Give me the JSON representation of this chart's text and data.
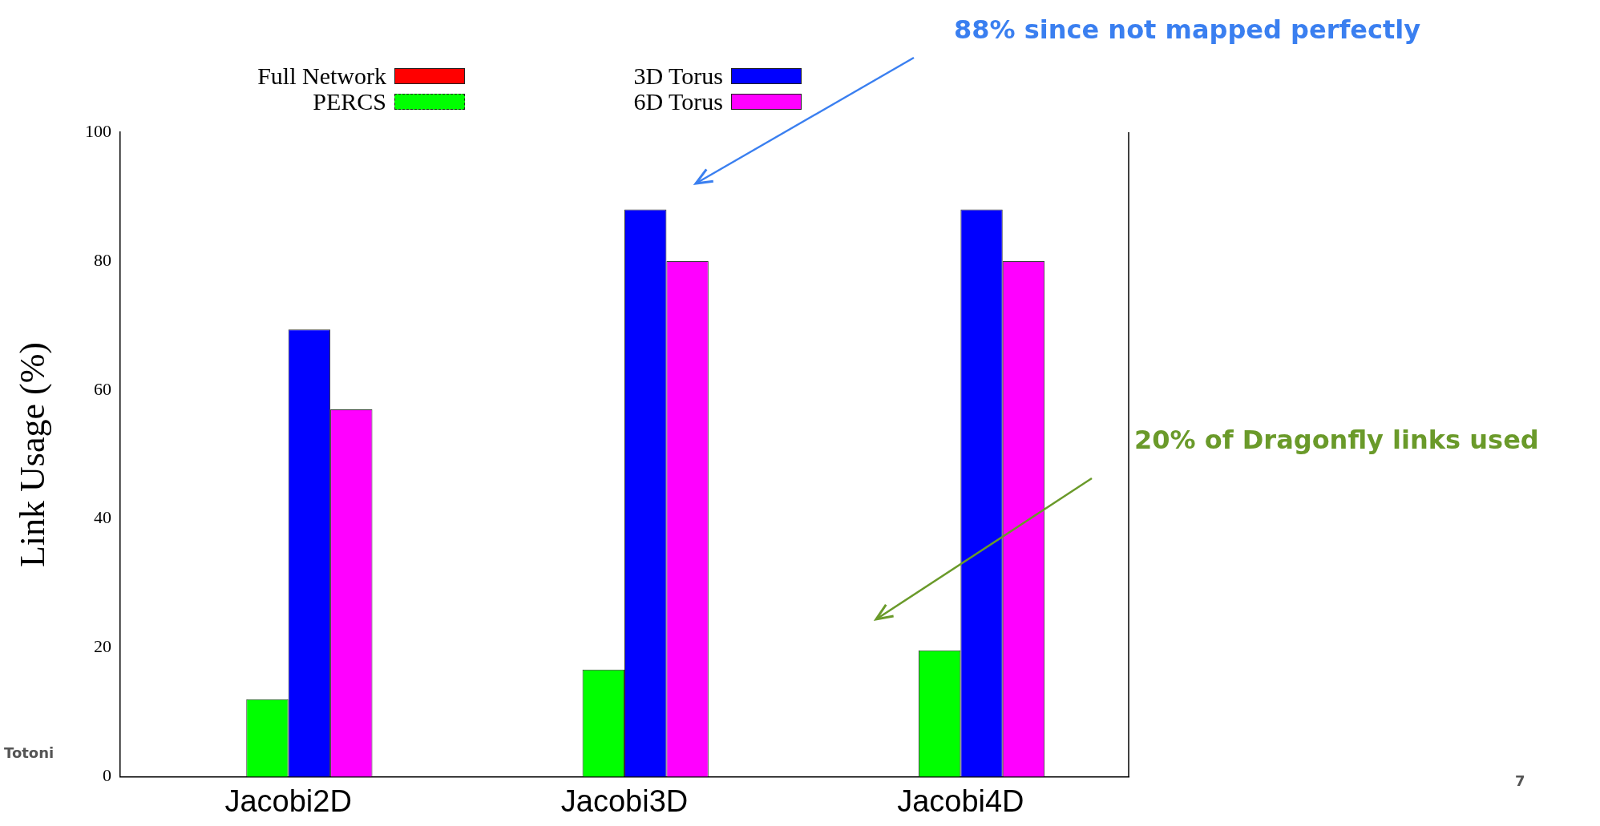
{
  "chart_data": {
    "type": "bar",
    "ylabel": "Link Usage (%)",
    "categories": [
      "Jacobi2D",
      "Jacobi3D",
      "Jacobi4D"
    ],
    "series": [
      {
        "name": "Full Network",
        "color": "#ff0000",
        "values": [
          0,
          0,
          0
        ]
      },
      {
        "name": "PERCS",
        "color": "#00ff00",
        "values": [
          12,
          16.6,
          19.6
        ]
      },
      {
        "name": "3D Torus",
        "color": "#0000ff",
        "values": [
          69.4,
          88,
          88
        ]
      },
      {
        "name": "6D Torus",
        "color": "#ff00ff",
        "values": [
          57,
          80,
          80
        ]
      }
    ],
    "ylim": [
      0,
      100
    ],
    "yticks": [
      0,
      20,
      40,
      60,
      80,
      100
    ],
    "grid": false,
    "legend": "top left",
    "annotations": [
      "88% since not mapped perfectly",
      "20% of Dragonfly links used",
      "Totoni",
      "7"
    ]
  }
}
